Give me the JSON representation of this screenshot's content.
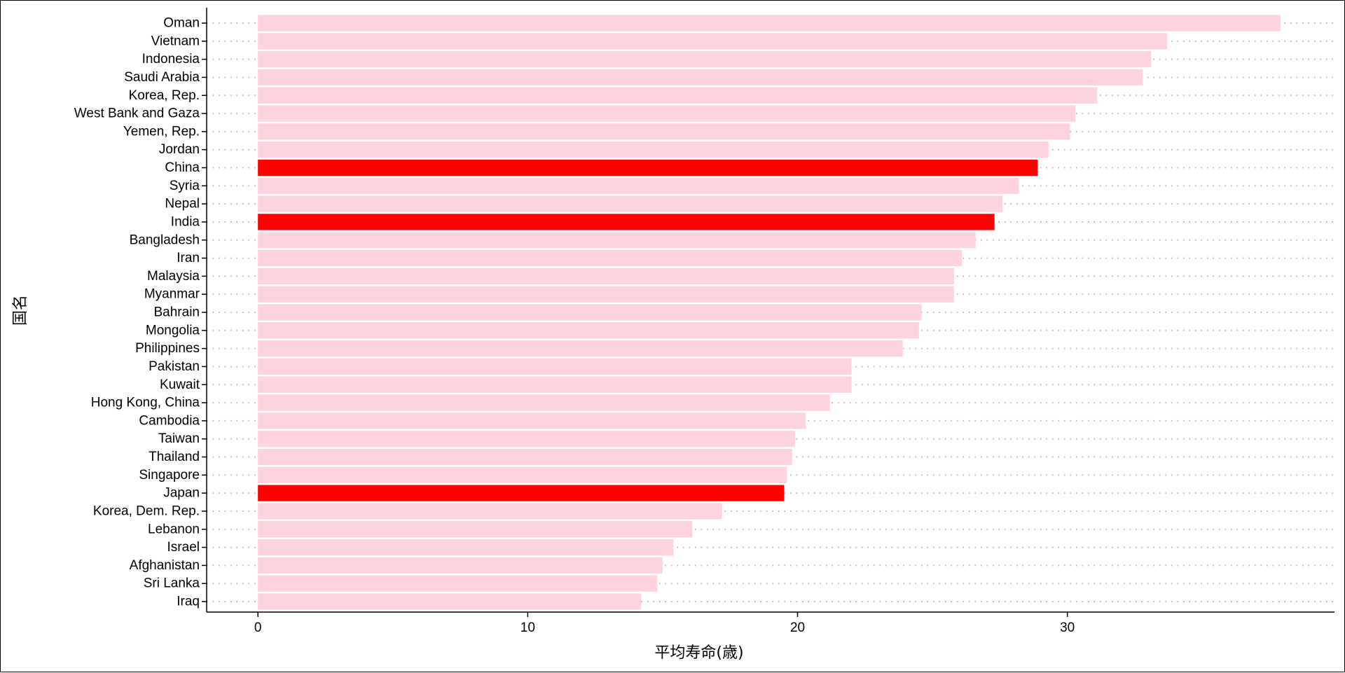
{
  "chart_data": {
    "type": "bar",
    "orientation": "horizontal",
    "xlabel": "平均寿命(歳)",
    "ylabel": "国名",
    "xlim": [
      -1.9,
      39.9
    ],
    "xticks": [
      0,
      10,
      20,
      30
    ],
    "grid": "dotted horizontal",
    "colors": {
      "default": "#FFD1DC",
      "highlight": "#FF0000"
    },
    "categories": [
      "Oman",
      "Vietnam",
      "Indonesia",
      "Saudi Arabia",
      "Korea, Rep.",
      "West Bank and Gaza",
      "Yemen, Rep.",
      "Jordan",
      "China",
      "Syria",
      "Nepal",
      "India",
      "Bangladesh",
      "Iran",
      "Malaysia",
      "Myanmar",
      "Bahrain",
      "Mongolia",
      "Philippines",
      "Pakistan",
      "Kuwait",
      "Hong Kong, China",
      "Cambodia",
      "Taiwan",
      "Thailand",
      "Singapore",
      "Japan",
      "Korea, Dem. Rep.",
      "Lebanon",
      "Israel",
      "Afghanistan",
      "Sri Lanka",
      "Iraq"
    ],
    "values": [
      37.9,
      33.7,
      33.1,
      32.8,
      31.1,
      30.3,
      30.1,
      29.3,
      28.9,
      28.2,
      27.6,
      27.3,
      26.6,
      26.1,
      25.8,
      25.8,
      24.6,
      24.5,
      23.9,
      22.0,
      22.0,
      21.2,
      20.3,
      19.9,
      19.8,
      19.6,
      19.5,
      17.2,
      16.1,
      15.4,
      15.0,
      14.8,
      14.2
    ],
    "highlighted": [
      "China",
      "India",
      "Japan"
    ]
  }
}
